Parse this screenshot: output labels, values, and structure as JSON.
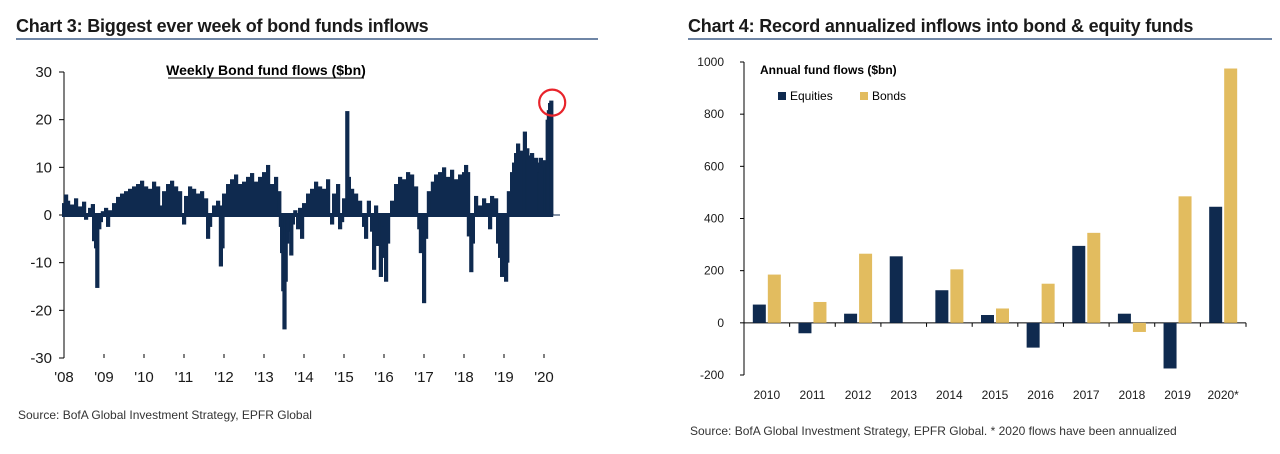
{
  "left": {
    "title": "Chart 3: Biggest ever week of bond funds inflows",
    "source": "Source:  BofA Global Investment Strategy, EPFR Global"
  },
  "right": {
    "title": "Chart 4: Record annualized inflows into bond & equity funds",
    "source": "Source:  BofA Global Investment Strategy, EPFR Global. * 2020 flows have been annualized"
  },
  "colors": {
    "navy": "#0f2a4f",
    "gold": "#e2bc5f",
    "highlight_circle": "#e8242b",
    "title_rule": "#6f86a6"
  },
  "chart_data": [
    {
      "type": "bar",
      "title": "Weekly Bond fund flows ($bn)",
      "xlabel": "",
      "ylabel": "",
      "ylim": [
        -30,
        30
      ],
      "yticks": [
        "30",
        "20",
        "10",
        "0",
        "-10",
        "-20",
        "-30"
      ],
      "xticks": [
        "'08",
        "'09",
        "'10",
        "'11",
        "'12",
        "'13",
        "'14",
        "'15",
        "'16",
        "'17",
        "'18",
        "'19",
        "'20"
      ],
      "x_start_year": 2008,
      "x_end_year": 2020.4,
      "highlight": "circle around latest weekly inflow",
      "series": [
        {
          "values": [
            [
              2008.0,
              2.5
            ],
            [
              2008.05,
              4.3
            ],
            [
              2008.1,
              3.0
            ],
            [
              2008.2,
              2.2
            ],
            [
              2008.3,
              3.5
            ],
            [
              2008.4,
              1.8
            ],
            [
              2008.5,
              2.8
            ],
            [
              2008.55,
              -1.0
            ],
            [
              2008.65,
              1.5
            ],
            [
              2008.72,
              2.3
            ],
            [
              2008.75,
              -5.5
            ],
            [
              2008.8,
              -7.0
            ],
            [
              2008.83,
              -15.3
            ],
            [
              2008.88,
              -3.0
            ],
            [
              2008.92,
              -1.5
            ],
            [
              2008.97,
              0.8
            ],
            [
              2009.05,
              1.5
            ],
            [
              2009.1,
              -2.5
            ],
            [
              2009.15,
              1.0
            ],
            [
              2009.25,
              2.5
            ],
            [
              2009.35,
              3.8
            ],
            [
              2009.45,
              4.5
            ],
            [
              2009.55,
              5.0
            ],
            [
              2009.65,
              5.5
            ],
            [
              2009.75,
              6.0
            ],
            [
              2009.85,
              6.5
            ],
            [
              2009.95,
              7.2
            ],
            [
              2010.05,
              6.0
            ],
            [
              2010.15,
              5.5
            ],
            [
              2010.25,
              7.0
            ],
            [
              2010.35,
              6.0
            ],
            [
              2010.42,
              2.0
            ],
            [
              2010.5,
              5.0
            ],
            [
              2010.6,
              6.5
            ],
            [
              2010.7,
              7.2
            ],
            [
              2010.8,
              6.0
            ],
            [
              2010.9,
              5.0
            ],
            [
              2011.0,
              -2.0
            ],
            [
              2011.05,
              4.0
            ],
            [
              2011.15,
              6.0
            ],
            [
              2011.25,
              5.5
            ],
            [
              2011.35,
              4.5
            ],
            [
              2011.45,
              5.0
            ],
            [
              2011.55,
              3.5
            ],
            [
              2011.6,
              -5.0
            ],
            [
              2011.65,
              -2.5
            ],
            [
              2011.75,
              2.0
            ],
            [
              2011.85,
              3.0
            ],
            [
              2011.9,
              2.0
            ],
            [
              2011.92,
              -10.8
            ],
            [
              2011.96,
              -7.0
            ],
            [
              2012.0,
              4.5
            ],
            [
              2012.1,
              6.5
            ],
            [
              2012.2,
              7.5
            ],
            [
              2012.3,
              8.5
            ],
            [
              2012.4,
              6.5
            ],
            [
              2012.5,
              7.0
            ],
            [
              2012.6,
              8.0
            ],
            [
              2012.7,
              8.8
            ],
            [
              2012.8,
              7.0
            ],
            [
              2012.9,
              8.0
            ],
            [
              2013.0,
              9.0
            ],
            [
              2013.1,
              10.5
            ],
            [
              2013.2,
              6.5
            ],
            [
              2013.3,
              8.0
            ],
            [
              2013.38,
              5.0
            ],
            [
              2013.42,
              -2.5
            ],
            [
              2013.45,
              -8.0
            ],
            [
              2013.48,
              -16.0
            ],
            [
              2013.51,
              -24.0
            ],
            [
              2013.54,
              -14.0
            ],
            [
              2013.58,
              -6.0
            ],
            [
              2013.62,
              -3.5
            ],
            [
              2013.68,
              -8.5
            ],
            [
              2013.72,
              -2.0
            ],
            [
              2013.78,
              1.0
            ],
            [
              2013.85,
              -3.0
            ],
            [
              2013.9,
              1.5
            ],
            [
              2013.95,
              -5.0
            ],
            [
              2014.0,
              2.5
            ],
            [
              2014.1,
              4.5
            ],
            [
              2014.2,
              5.5
            ],
            [
              2014.3,
              7.0
            ],
            [
              2014.4,
              6.0
            ],
            [
              2014.5,
              5.5
            ],
            [
              2014.6,
              7.5
            ],
            [
              2014.7,
              -2.0
            ],
            [
              2014.75,
              4.5
            ],
            [
              2014.85,
              6.5
            ],
            [
              2014.9,
              -3.0
            ],
            [
              2014.95,
              -1.5
            ],
            [
              2015.0,
              3.5
            ],
            [
              2015.08,
              21.8
            ],
            [
              2015.12,
              8.0
            ],
            [
              2015.2,
              5.5
            ],
            [
              2015.3,
              4.5
            ],
            [
              2015.4,
              3.0
            ],
            [
              2015.5,
              -2.5
            ],
            [
              2015.55,
              -5.0
            ],
            [
              2015.62,
              3.0
            ],
            [
              2015.7,
              -3.5
            ],
            [
              2015.75,
              -11.5
            ],
            [
              2015.8,
              2.0
            ],
            [
              2015.85,
              -6.5
            ],
            [
              2015.92,
              -13.0
            ],
            [
              2015.97,
              -9.0
            ],
            [
              2016.0,
              -2.5
            ],
            [
              2016.05,
              -14.0
            ],
            [
              2016.1,
              -6.0
            ],
            [
              2016.2,
              3.0
            ],
            [
              2016.3,
              6.5
            ],
            [
              2016.4,
              8.0
            ],
            [
              2016.5,
              7.5
            ],
            [
              2016.6,
              9.0
            ],
            [
              2016.7,
              8.5
            ],
            [
              2016.8,
              6.0
            ],
            [
              2016.88,
              -3.0
            ],
            [
              2016.92,
              -8.0
            ],
            [
              2016.96,
              -4.5
            ],
            [
              2017.0,
              -18.5
            ],
            [
              2017.05,
              -5.0
            ],
            [
              2017.12,
              5.0
            ],
            [
              2017.22,
              7.0
            ],
            [
              2017.3,
              8.5
            ],
            [
              2017.4,
              9.0
            ],
            [
              2017.5,
              10.0
            ],
            [
              2017.6,
              8.0
            ],
            [
              2017.7,
              9.5
            ],
            [
              2017.8,
              7.5
            ],
            [
              2017.9,
              8.5
            ],
            [
              2018.0,
              9.0
            ],
            [
              2018.05,
              10.5
            ],
            [
              2018.1,
              9.0
            ],
            [
              2018.12,
              -4.5
            ],
            [
              2018.18,
              -12.0
            ],
            [
              2018.22,
              -6.0
            ],
            [
              2018.3,
              4.0
            ],
            [
              2018.4,
              2.0
            ],
            [
              2018.5,
              3.5
            ],
            [
              2018.6,
              2.5
            ],
            [
              2018.65,
              -3.0
            ],
            [
              2018.7,
              4.0
            ],
            [
              2018.8,
              3.5
            ],
            [
              2018.85,
              -6.0
            ],
            [
              2018.9,
              -9.0
            ],
            [
              2018.95,
              -13.0
            ],
            [
              2019.0,
              -7.0
            ],
            [
              2019.05,
              -14.0
            ],
            [
              2019.08,
              -10.0
            ],
            [
              2019.12,
              5.0
            ],
            [
              2019.2,
              9.0
            ],
            [
              2019.25,
              11.0
            ],
            [
              2019.3,
              13.0
            ],
            [
              2019.35,
              15.0
            ],
            [
              2019.4,
              12.0
            ],
            [
              2019.45,
              13.5
            ],
            [
              2019.52,
              17.5
            ],
            [
              2019.58,
              14.0
            ],
            [
              2019.62,
              12.5
            ],
            [
              2019.7,
              13.0
            ],
            [
              2019.75,
              11.0
            ],
            [
              2019.8,
              12.0
            ],
            [
              2019.85,
              11.0
            ],
            [
              2019.88,
              9.0
            ],
            [
              2019.92,
              12.0
            ],
            [
              2019.96,
              10.5
            ],
            [
              2020.0,
              11.5
            ],
            [
              2020.03,
              10.0
            ],
            [
              2020.06,
              11.0
            ],
            [
              2020.09,
              20.0
            ],
            [
              2020.12,
              22.0
            ],
            [
              2020.15,
              23.5
            ],
            [
              2020.18,
              24.0
            ]
          ]
        }
      ]
    },
    {
      "type": "bar",
      "title": "Annual fund flows ($bn)",
      "xlabel": "",
      "ylabel": "",
      "ylim": [
        -200,
        1000
      ],
      "yticks": [
        "1000",
        "800",
        "600",
        "400",
        "200",
        "0",
        "-200"
      ],
      "categories": [
        "2010",
        "2011",
        "2012",
        "2013",
        "2014",
        "2015",
        "2016",
        "2017",
        "2018",
        "2019",
        "2020*"
      ],
      "legend_position": "top-left",
      "series": [
        {
          "name": "Equities",
          "values": [
            70,
            -40,
            35,
            255,
            125,
            30,
            -95,
            295,
            35,
            -175,
            445
          ]
        },
        {
          "name": "Bonds",
          "values": [
            185,
            80,
            265,
            0,
            205,
            55,
            150,
            345,
            -35,
            485,
            975
          ]
        }
      ]
    }
  ]
}
